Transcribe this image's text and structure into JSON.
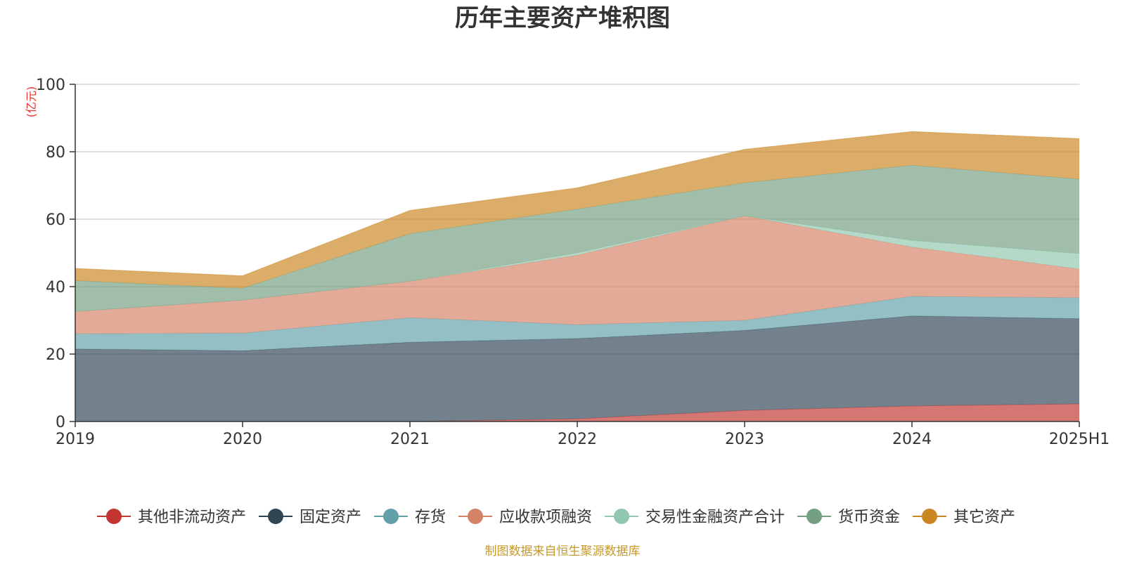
{
  "chart_data": {
    "type": "area",
    "stacked": true,
    "title": "历年主要资产堆积图",
    "ylabel": "(亿元)",
    "ylim": [
      0,
      100
    ],
    "yticks": [
      0,
      20,
      40,
      60,
      80,
      100
    ],
    "x": [
      "2019",
      "2020",
      "2021",
      "2022",
      "2023",
      "2024",
      "2025H1"
    ],
    "grid": true,
    "legend_position": "bottom",
    "series": [
      {
        "name": "其他非流动资产",
        "color": "#c23531",
        "values": [
          0,
          0,
          0,
          0.8,
          3.3,
          4.6,
          5.2
        ]
      },
      {
        "name": "固定资产",
        "color": "#2f4554",
        "values": [
          21.5,
          21.0,
          23.5,
          23.8,
          23.7,
          26.7,
          25.3
        ]
      },
      {
        "name": "存货",
        "color": "#61a0a8",
        "values": [
          4.5,
          5.2,
          7.3,
          4.1,
          3.0,
          5.8,
          6.2
        ]
      },
      {
        "name": "应收款项融资",
        "color": "#d48265",
        "values": [
          6.6,
          9.8,
          10.8,
          20.6,
          31.0,
          14.6,
          8.5
        ]
      },
      {
        "name": "交易性金融资产合计",
        "color": "#91c7ae",
        "values": [
          0,
          0,
          0,
          0.7,
          0,
          2.0,
          4.6
        ]
      },
      {
        "name": "货币资金",
        "color": "#749f83",
        "values": [
          9.2,
          3.5,
          14.1,
          13.0,
          9.8,
          22.3,
          22.1
        ]
      },
      {
        "name": "其它资产",
        "color": "#ca8622",
        "values": [
          3.6,
          3.7,
          6.9,
          6.3,
          9.9,
          10.0,
          12.0
        ]
      }
    ]
  },
  "footer": {
    "source": "制图数据来自恒生聚源数据库"
  }
}
